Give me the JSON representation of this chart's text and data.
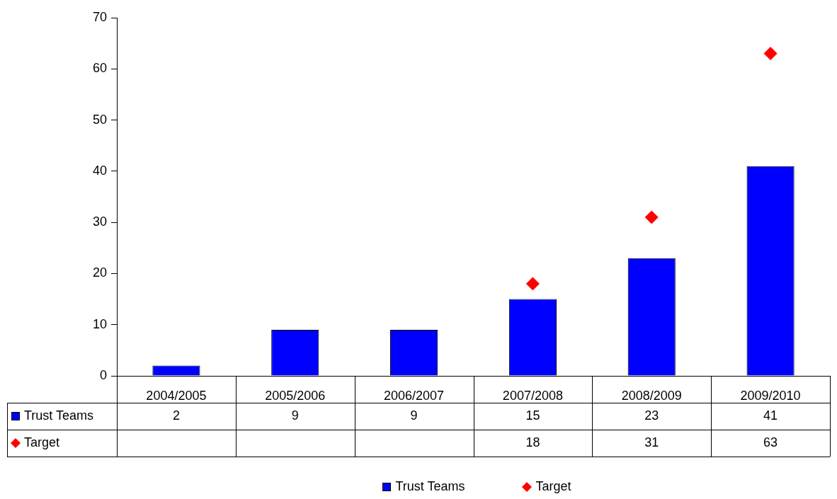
{
  "chart_data": {
    "type": "bar",
    "categories": [
      "2004/2005",
      "2005/2006",
      "2006/2007",
      "2007/2008",
      "2008/2009",
      "2009/2010"
    ],
    "series": [
      {
        "name": "Trust Teams",
        "color": "#0000ff",
        "values": [
          2,
          9,
          9,
          15,
          23,
          41
        ]
      },
      {
        "name": "Target",
        "type": "scatter",
        "marker": "diamond",
        "color": "#ff0000",
        "values": [
          null,
          null,
          null,
          18,
          31,
          63
        ]
      }
    ],
    "ylim": [
      0,
      70
    ],
    "yticks": [
      0,
      10,
      20,
      30,
      40,
      50,
      60,
      70
    ],
    "grid": false,
    "legend": "bottom",
    "data_labels": true
  }
}
